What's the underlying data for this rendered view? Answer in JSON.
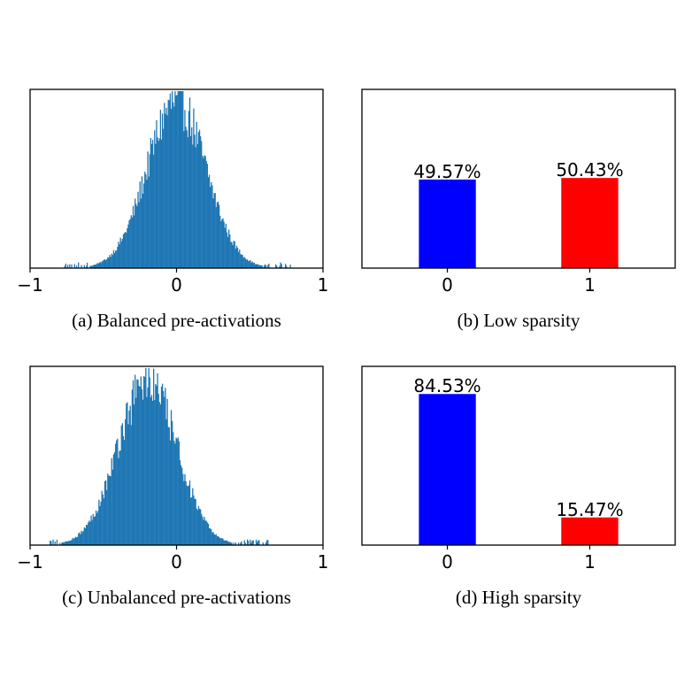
{
  "chart_data": [
    {
      "type": "histogram",
      "panel": "a",
      "caption": "(a) Balanced pre-activations",
      "xlim": [
        -1,
        1
      ],
      "xticks": [
        -1,
        0,
        1
      ],
      "xtick_labels": [
        "−1",
        "0",
        "1"
      ],
      "yticks_visible": false,
      "bins": 300,
      "distribution": {
        "mean": 0.0,
        "std": 0.2,
        "peak_fraction_of_axis": 0.96
      },
      "data_range": [
        -0.8,
        0.78
      ],
      "color": "#1f77b4"
    },
    {
      "type": "bar",
      "panel": "b",
      "caption": "(b) Low sparsity",
      "categories": [
        "0",
        "1"
      ],
      "values": [
        0.4957,
        0.5043
      ],
      "data_labels": [
        "49.57%",
        "50.43%"
      ],
      "colors": [
        "#0000ff",
        "#ff0000"
      ],
      "xlim": [
        -0.6,
        1.6
      ],
      "ylim": [
        0,
        1
      ],
      "yticks_visible": false
    },
    {
      "type": "histogram",
      "panel": "c",
      "caption": "(c) Unbalanced pre-activations",
      "xlim": [
        -1,
        1
      ],
      "xticks": [
        -1,
        0,
        1
      ],
      "xtick_labels": [
        "−1",
        "0",
        "1"
      ],
      "yticks_visible": false,
      "bins": 300,
      "distribution": {
        "mean": -0.2,
        "std": 0.2,
        "peak_fraction_of_axis": 0.95
      },
      "data_range": [
        -0.93,
        0.63
      ],
      "color": "#1f77b4"
    },
    {
      "type": "bar",
      "panel": "d",
      "caption": "(d) High sparsity",
      "categories": [
        "0",
        "1"
      ],
      "values": [
        0.8453,
        0.1547
      ],
      "data_labels": [
        "84.53%",
        "15.47%"
      ],
      "colors": [
        "#0000ff",
        "#ff0000"
      ],
      "xlim": [
        -0.6,
        1.6
      ],
      "ylim": [
        0,
        1
      ],
      "yticks_visible": false
    }
  ]
}
